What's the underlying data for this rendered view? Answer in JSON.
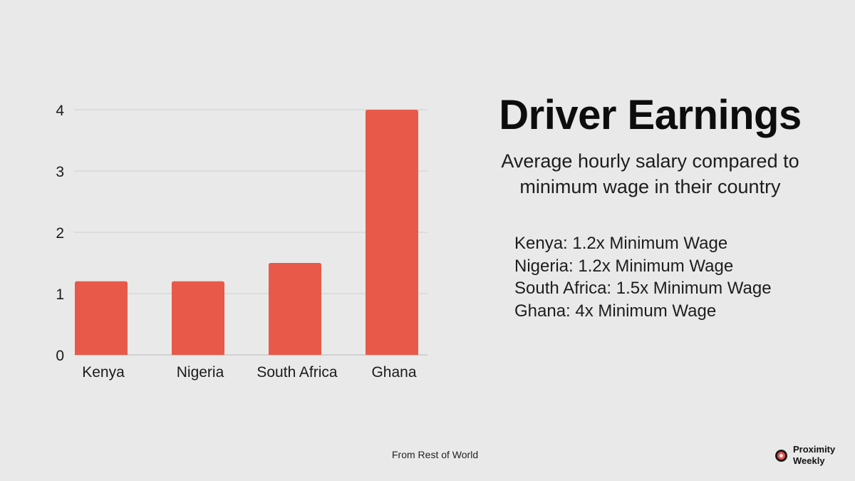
{
  "chart_data": {
    "type": "bar",
    "categories": [
      "Kenya",
      "Nigeria",
      "South Africa",
      "Ghana"
    ],
    "values": [
      1.2,
      1.2,
      1.5,
      4
    ],
    "yticks": [
      0,
      1,
      2,
      3,
      4
    ],
    "ylim": [
      0,
      4
    ],
    "grid": true,
    "bar_color": "#e8594a",
    "gridline_color": "#cfcfcf"
  },
  "header": {
    "title": "Driver Earnings",
    "subtitle_line1": "Average hourly salary compared to",
    "subtitle_line2": "minimum wage in their country"
  },
  "notes": [
    "Kenya: 1.2x Minimum Wage",
    "Nigeria: 1.2x Minimum Wage",
    "South Africa: 1.5x Minimum Wage",
    "Ghana: 4x Minimum Wage"
  ],
  "footer": {
    "source": "From Rest of World",
    "brand_line1": "Proximity",
    "brand_line2": "Weekly",
    "brand_icon": "ring-logo-icon"
  }
}
